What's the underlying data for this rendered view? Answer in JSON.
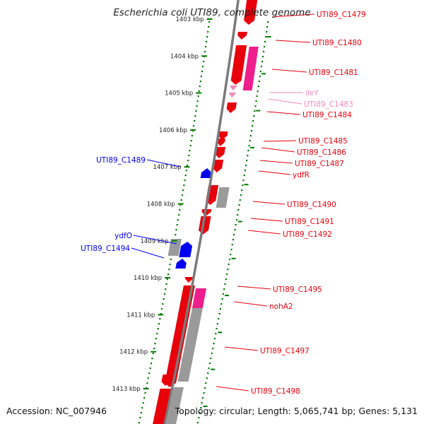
{
  "title": "Escherichia coli UTI89, complete genome",
  "accession": "Accession: NC_007946",
  "topology": "Topology: circular; Length: 5,065,741 bp; Genes: 5,131",
  "colors": {
    "forward": "#e8000b",
    "forward_alt": "#ee1f8c",
    "reverse": "#0000ee",
    "pseudo": "#9a9a9a",
    "pale": "#f08bbb",
    "tick": "#007a00",
    "backbone": "#7a7a7a"
  },
  "tick_labels": [
    "1403 kbp",
    "1404 kbp",
    "1405 kbp",
    "1406 kbp",
    "1407 kbp",
    "1408 kbp",
    "1409 kbp",
    "1410 kbp",
    "1411 kbp",
    "1412 kbp",
    "1413 kbp"
  ],
  "gene_labels": [
    {
      "name": "UTI89_C1479",
      "color": "#e8000b"
    },
    {
      "name": "UTI89_C1480",
      "color": "#e8000b"
    },
    {
      "name": "UTI89_C1481",
      "color": "#e8000b"
    },
    {
      "name": "ileY",
      "color": "#f08bbb"
    },
    {
      "name": "UTI89_C1483",
      "color": "#f08bbb"
    },
    {
      "name": "UTI89_C1484",
      "color": "#e8000b"
    },
    {
      "name": "UTI89_C1485",
      "color": "#e8000b"
    },
    {
      "name": "UTI89_C1486",
      "color": "#e8000b"
    },
    {
      "name": "UTI89_C1487",
      "color": "#e8000b"
    },
    {
      "name": "ydfR",
      "color": "#e8000b"
    },
    {
      "name": "UTI89_C1490",
      "color": "#e8000b"
    },
    {
      "name": "UTI89_C1491",
      "color": "#e8000b"
    },
    {
      "name": "UTI89_C1492",
      "color": "#e8000b"
    },
    {
      "name": "UTI89_C1495",
      "color": "#e8000b"
    },
    {
      "name": "nohA2",
      "color": "#e8000b"
    },
    {
      "name": "UTI89_C1497",
      "color": "#e8000b"
    },
    {
      "name": "UTI89_C1498",
      "color": "#e8000b"
    },
    {
      "name": "UTI89_C1489",
      "color": "#0000ee"
    },
    {
      "name": "ydfO",
      "color": "#0000ee"
    },
    {
      "name": "UTI89_C1494",
      "color": "#0000ee"
    }
  ],
  "features": [
    {
      "name": "UTI89_C1479",
      "strand": "forward",
      "kind": "gene",
      "color": "#e8000b"
    },
    {
      "name": "UTI89_C1480",
      "strand": "forward",
      "kind": "gene",
      "color": "#e8000b"
    },
    {
      "name": "UTI89_C1481",
      "strand": "forward",
      "kind": "gene",
      "color": "#ee1f8c"
    },
    {
      "name": "ileY",
      "strand": "forward",
      "kind": "tRNA",
      "color": "#f08bbb"
    },
    {
      "name": "UTI89_C1483",
      "strand": "forward",
      "kind": "tRNA",
      "color": "#f08bbb"
    },
    {
      "name": "UTI89_C1489",
      "strand": "reverse",
      "kind": "gene",
      "color": "#0000ee"
    },
    {
      "name": "ydfO",
      "strand": "reverse",
      "kind": "gene",
      "color": "#0000ee"
    },
    {
      "name": "UTI89_C1494",
      "strand": "reverse",
      "kind": "gene",
      "color": "#0000ee"
    },
    {
      "name": "nohA2",
      "strand": "forward",
      "kind": "gene",
      "color": "#ee1f8c"
    }
  ]
}
